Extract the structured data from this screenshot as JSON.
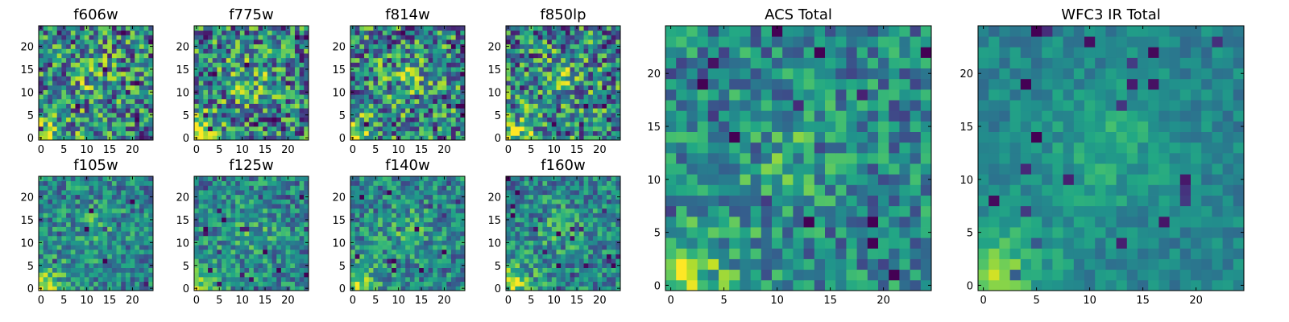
{
  "chart_data": [
    {
      "type": "heatmap",
      "title": "f606w",
      "colormap": "viridis",
      "grid": false,
      "xlim": [
        -0.5,
        24.5
      ],
      "ylim": [
        -0.5,
        24.5
      ],
      "xticks": [
        0,
        5,
        10,
        15,
        20
      ],
      "yticks": [
        0,
        5,
        10,
        15,
        20
      ],
      "xtick_labels": [
        "0",
        "5",
        "10",
        "15",
        "20"
      ],
      "ytick_labels": [
        "0",
        "5",
        "10",
        "15",
        "20"
      ],
      "rows": 25,
      "cols": 25,
      "origin": "lower",
      "peak": [
        1,
        1
      ],
      "noise": "high"
    },
    {
      "type": "heatmap",
      "title": "f775w",
      "colormap": "viridis",
      "grid": false,
      "xlim": [
        -0.5,
        24.5
      ],
      "ylim": [
        -0.5,
        24.5
      ],
      "xticks": [
        0,
        5,
        10,
        15,
        20
      ],
      "yticks": [
        0,
        5,
        10,
        15,
        20
      ],
      "xtick_labels": [
        "0",
        "5",
        "10",
        "15",
        "20"
      ],
      "ytick_labels": [
        "0",
        "5",
        "10",
        "15",
        "20"
      ],
      "rows": 25,
      "cols": 25,
      "origin": "lower",
      "peak": [
        1,
        1
      ],
      "noise": "high"
    },
    {
      "type": "heatmap",
      "title": "f814w",
      "colormap": "viridis",
      "grid": false,
      "xlim": [
        -0.5,
        24.5
      ],
      "ylim": [
        -0.5,
        24.5
      ],
      "xticks": [
        0,
        5,
        10,
        15,
        20
      ],
      "yticks": [
        0,
        5,
        10,
        15,
        20
      ],
      "xtick_labels": [
        "0",
        "5",
        "10",
        "15",
        "20"
      ],
      "ytick_labels": [
        "0",
        "5",
        "10",
        "15",
        "20"
      ],
      "rows": 25,
      "cols": 25,
      "origin": "lower",
      "peak": [
        1,
        1
      ],
      "noise": "high"
    },
    {
      "type": "heatmap",
      "title": "f850lp",
      "colormap": "viridis",
      "grid": false,
      "xlim": [
        -0.5,
        24.5
      ],
      "ylim": [
        -0.5,
        24.5
      ],
      "xticks": [
        0,
        5,
        10,
        15,
        20
      ],
      "yticks": [
        0,
        5,
        10,
        15,
        20
      ],
      "xtick_labels": [
        "0",
        "5",
        "10",
        "15",
        "20"
      ],
      "ytick_labels": [
        "0",
        "5",
        "10",
        "15",
        "20"
      ],
      "rows": 25,
      "cols": 25,
      "origin": "lower",
      "peak": [
        1,
        1
      ],
      "noise": "high"
    },
    {
      "type": "heatmap",
      "title": "f105w",
      "colormap": "viridis",
      "grid": false,
      "xlim": [
        -0.5,
        24.5
      ],
      "ylim": [
        -0.5,
        24.5
      ],
      "xticks": [
        0,
        5,
        10,
        15,
        20
      ],
      "yticks": [
        0,
        5,
        10,
        15,
        20
      ],
      "xtick_labels": [
        "0",
        "5",
        "10",
        "15",
        "20"
      ],
      "ytick_labels": [
        "0",
        "5",
        "10",
        "15",
        "20"
      ],
      "rows": 25,
      "cols": 25,
      "origin": "lower",
      "peak": [
        1,
        1
      ],
      "noise": "medium"
    },
    {
      "type": "heatmap",
      "title": "f125w",
      "colormap": "viridis",
      "grid": false,
      "xlim": [
        -0.5,
        24.5
      ],
      "ylim": [
        -0.5,
        24.5
      ],
      "xticks": [
        0,
        5,
        10,
        15,
        20
      ],
      "yticks": [
        0,
        5,
        10,
        15,
        20
      ],
      "xtick_labels": [
        "0",
        "5",
        "10",
        "15",
        "20"
      ],
      "ytick_labels": [
        "0",
        "5",
        "10",
        "15",
        "20"
      ],
      "rows": 25,
      "cols": 25,
      "origin": "lower",
      "peak": [
        1,
        1
      ],
      "noise": "medium"
    },
    {
      "type": "heatmap",
      "title": "f140w",
      "colormap": "viridis",
      "grid": false,
      "xlim": [
        -0.5,
        24.5
      ],
      "ylim": [
        -0.5,
        24.5
      ],
      "xticks": [
        0,
        5,
        10,
        15,
        20
      ],
      "yticks": [
        0,
        5,
        10,
        15,
        20
      ],
      "xtick_labels": [
        "0",
        "5",
        "10",
        "15",
        "20"
      ],
      "ytick_labels": [
        "0",
        "5",
        "10",
        "15",
        "20"
      ],
      "rows": 25,
      "cols": 25,
      "origin": "lower",
      "peak": [
        1,
        1
      ],
      "noise": "medium"
    },
    {
      "type": "heatmap",
      "title": "f160w",
      "colormap": "viridis",
      "grid": false,
      "xlim": [
        -0.5,
        24.5
      ],
      "ylim": [
        -0.5,
        24.5
      ],
      "xticks": [
        0,
        5,
        10,
        15,
        20
      ],
      "yticks": [
        0,
        5,
        10,
        15,
        20
      ],
      "xtick_labels": [
        "0",
        "5",
        "10",
        "15",
        "20"
      ],
      "ytick_labels": [
        "0",
        "5",
        "10",
        "15",
        "20"
      ],
      "rows": 25,
      "cols": 25,
      "origin": "lower",
      "peak": [
        1,
        1
      ],
      "noise": "medium"
    },
    {
      "type": "heatmap",
      "title": "ACS Total",
      "colormap": "viridis",
      "grid": false,
      "xlim": [
        -0.5,
        24.5
      ],
      "ylim": [
        -0.5,
        24.5
      ],
      "xticks": [
        0,
        5,
        10,
        15,
        20
      ],
      "yticks": [
        0,
        5,
        10,
        15,
        20
      ],
      "xtick_labels": [
        "0",
        "5",
        "10",
        "15",
        "20"
      ],
      "ytick_labels": [
        "0",
        "5",
        "10",
        "15",
        "20"
      ],
      "rows": 25,
      "cols": 25,
      "origin": "lower",
      "peak": [
        1,
        1
      ],
      "noise": "medium"
    },
    {
      "type": "heatmap",
      "title": "WFC3 IR Total",
      "colormap": "viridis",
      "grid": false,
      "xlim": [
        -0.5,
        24.5
      ],
      "ylim": [
        -0.5,
        24.5
      ],
      "xticks": [
        0,
        5,
        10,
        15,
        20
      ],
      "yticks": [
        0,
        5,
        10,
        15,
        20
      ],
      "xtick_labels": [
        "0",
        "5",
        "10",
        "15",
        "20"
      ],
      "ytick_labels": [
        "0",
        "5",
        "10",
        "15",
        "20"
      ],
      "rows": 25,
      "cols": 25,
      "origin": "lower",
      "peak": [
        1,
        1
      ],
      "noise": "low"
    }
  ]
}
